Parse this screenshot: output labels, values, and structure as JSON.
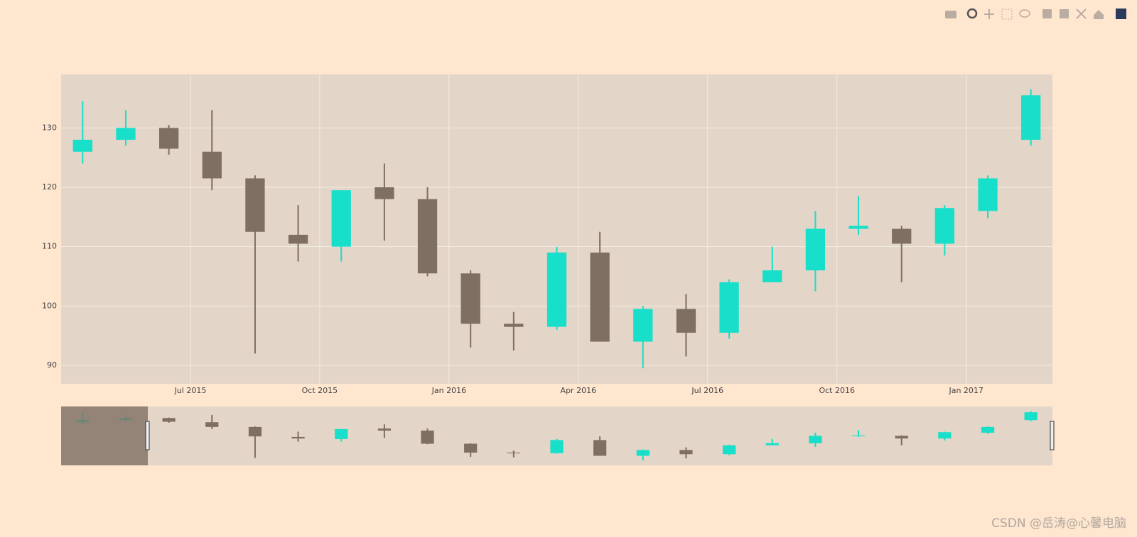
{
  "chart_data": {
    "type": "candlestick",
    "x": [
      "2015-04",
      "2015-05",
      "2015-06",
      "2015-07",
      "2015-08",
      "2015-09",
      "2015-10",
      "2015-11",
      "2015-12",
      "2016-01",
      "2016-02",
      "2016-03",
      "2016-04",
      "2016-05",
      "2016-06",
      "2016-07",
      "2016-08",
      "2016-09",
      "2016-10",
      "2016-11",
      "2016-12",
      "2017-01",
      "2017-02"
    ],
    "open": [
      126,
      128,
      130,
      126,
      121.5,
      112,
      110,
      120,
      118,
      105.5,
      97,
      96.5,
      109,
      94,
      99.5,
      95.5,
      104,
      106,
      113,
      113,
      110.5,
      116,
      128
    ],
    "high": [
      134.5,
      133,
      130.5,
      133,
      122,
      117,
      119.5,
      124,
      120,
      106,
      99,
      110,
      112.5,
      100,
      102,
      104.5,
      110,
      116,
      118.5,
      113.5,
      117,
      122,
      136.5
    ],
    "low": [
      124,
      127,
      125.5,
      119.5,
      92,
      107.5,
      107.5,
      111,
      105,
      93,
      92.5,
      96,
      94,
      89.5,
      91.5,
      94.5,
      104,
      102.5,
      112,
      104,
      108.5,
      114.8,
      127
    ],
    "close": [
      128,
      130,
      126.5,
      121.5,
      112.5,
      110.5,
      119.5,
      118,
      105.5,
      97,
      96.5,
      109,
      94,
      99.5,
      95.5,
      104,
      106,
      113,
      113.5,
      110.5,
      116.5,
      121.5,
      135.5
    ],
    "increasing_color": "#17dfca",
    "decreasing_color": "#7f6f63",
    "xlim": [
      "2015-04",
      "2017-03"
    ],
    "xticks": [
      {
        "value": "2015-07",
        "label": "Jul 2015"
      },
      {
        "value": "2015-10",
        "label": "Oct 2015"
      },
      {
        "value": "2016-01",
        "label": "Jan 2016"
      },
      {
        "value": "2016-04",
        "label": "Apr 2016"
      },
      {
        "value": "2016-07",
        "label": "Jul 2016"
      },
      {
        "value": "2016-10",
        "label": "Oct 2016"
      },
      {
        "value": "2017-01",
        "label": "Jan 2017"
      }
    ],
    "ylim": [
      86.9,
      139
    ],
    "yticks": [
      90,
      100,
      110,
      120,
      130
    ],
    "grid": true,
    "rangeslider": true
  },
  "watermark": "CSDN @岳涛@心馨电脑"
}
